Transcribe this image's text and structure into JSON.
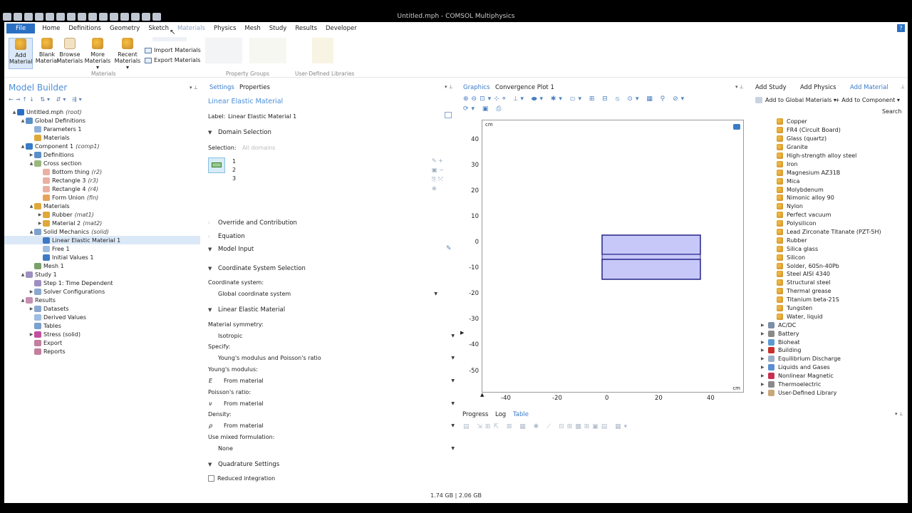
{
  "window": {
    "title": "Untitled.mph - COMSOL Multiphysics"
  },
  "menu": {
    "file": "File",
    "items": [
      "Home",
      "Definitions",
      "Geometry",
      "Sketch",
      "Materials",
      "Physics",
      "Mesh",
      "Study",
      "Results",
      "Developer"
    ]
  },
  "ribbon": {
    "add_material": [
      "Add",
      "Material"
    ],
    "blank_material": [
      "Blank",
      "Material"
    ],
    "browse_materials": [
      "Browse",
      "Materials"
    ],
    "more_materials": [
      "More",
      "Materials ▾"
    ],
    "recent_materials": [
      "Recent",
      "Materials ▾"
    ],
    "import_materials": "Import Materials",
    "export_materials": "Export Materials",
    "group_materials": "Materials",
    "group_property": "Property Groups",
    "group_udl": "User-Defined Libraries"
  },
  "model_builder": {
    "title": "Model Builder",
    "tree": [
      {
        "label": "Untitled.mph",
        "tag": "(root)",
        "indent": 0,
        "toggle": "▲",
        "color": "#2b6fc3"
      },
      {
        "label": "Global Definitions",
        "tag": "",
        "indent": 1,
        "toggle": "▲",
        "color": "#5b8fc8"
      },
      {
        "label": "Parameters 1",
        "tag": "",
        "indent": 2,
        "toggle": "",
        "color": "#8fb1d9"
      },
      {
        "label": "Materials",
        "tag": "",
        "indent": 2,
        "toggle": "",
        "color": "#e0a83a"
      },
      {
        "label": "Component 1",
        "tag": "(comp1)",
        "indent": 1,
        "toggle": "▲",
        "color": "#3a7bc8"
      },
      {
        "label": "Definitions",
        "tag": "",
        "indent": 2,
        "toggle": "▶",
        "color": "#5b8fc8"
      },
      {
        "label": "Cross section",
        "tag": "",
        "indent": 2,
        "toggle": "▲",
        "color": "#9ab77e"
      },
      {
        "label": "Bottom thing",
        "tag": "(r2)",
        "indent": 3,
        "toggle": "",
        "color": "#e9b1a1"
      },
      {
        "label": "Rectangle 3",
        "tag": "(r3)",
        "indent": 3,
        "toggle": "",
        "color": "#e9b1a1"
      },
      {
        "label": "Rectangle 4",
        "tag": "(r4)",
        "indent": 3,
        "toggle": "",
        "color": "#e9b1a1"
      },
      {
        "label": "Form Union",
        "tag": "(fin)",
        "indent": 3,
        "toggle": "",
        "color": "#e8a25a"
      },
      {
        "label": "Materials",
        "tag": "",
        "indent": 2,
        "toggle": "▲",
        "color": "#e0a83a"
      },
      {
        "label": "Rubber",
        "tag": "(mat1)",
        "indent": 3,
        "toggle": "▶",
        "color": "#e0a83a"
      },
      {
        "label": "Material 2",
        "tag": "(mat2)",
        "indent": 3,
        "toggle": "▶",
        "color": "#e0a83a"
      },
      {
        "label": "Solid Mechanics",
        "tag": "(solid)",
        "indent": 2,
        "toggle": "▲",
        "color": "#7ea1cc"
      },
      {
        "label": "Linear Elastic Material 1",
        "tag": "",
        "indent": 3,
        "toggle": "",
        "color": "#3d79c5",
        "selected": true
      },
      {
        "label": "Free 1",
        "tag": "",
        "indent": 3,
        "toggle": "",
        "color": "#9fbde0"
      },
      {
        "label": "Initial Values 1",
        "tag": "",
        "indent": 3,
        "toggle": "",
        "color": "#3d79c5"
      },
      {
        "label": "Mesh 1",
        "tag": "",
        "indent": 2,
        "toggle": "",
        "color": "#7ca06a"
      },
      {
        "label": "Study 1",
        "tag": "",
        "indent": 1,
        "toggle": "▲",
        "color": "#9e8fc2"
      },
      {
        "label": "Step 1: Time Dependent",
        "tag": "",
        "indent": 2,
        "toggle": "",
        "color": "#9e8fc2"
      },
      {
        "label": "Solver Configurations",
        "tag": "",
        "indent": 2,
        "toggle": "▶",
        "color": "#8aa7cf"
      },
      {
        "label": "Results",
        "tag": "",
        "indent": 1,
        "toggle": "▲",
        "color": "#c58fb1"
      },
      {
        "label": "Datasets",
        "tag": "",
        "indent": 2,
        "toggle": "▶",
        "color": "#8aa7cf"
      },
      {
        "label": "Derived Values",
        "tag": "",
        "indent": 2,
        "toggle": "",
        "color": "#9fbde0"
      },
      {
        "label": "Tables",
        "tag": "",
        "indent": 2,
        "toggle": "",
        "color": "#7aa0cf"
      },
      {
        "label": "Stress (solid)",
        "tag": "",
        "indent": 2,
        "toggle": "▶",
        "color": "#c24fa0"
      },
      {
        "label": "Export",
        "tag": "",
        "indent": 2,
        "toggle": "",
        "color": "#c27f9f"
      },
      {
        "label": "Reports",
        "tag": "",
        "indent": 2,
        "toggle": "",
        "color": "#c27f9f"
      }
    ]
  },
  "settings": {
    "tab_settings": "Settings",
    "tab_properties": "Properties",
    "title": "Linear Elastic Material",
    "label_caption": "Label:",
    "label_value": "Linear Elastic Material 1",
    "domain_selection": "Domain Selection",
    "selection_caption": "Selection:",
    "selection_value": "All domains",
    "domains": [
      "1",
      "2",
      "3"
    ],
    "override": "Override and Contribution",
    "equation": "Equation",
    "model_input": "Model Input",
    "coord_section": "Coordinate System Selection",
    "coord_caption": "Coordinate system:",
    "coord_value": "Global coordinate system",
    "lem_section": "Linear Elastic Material",
    "symmetry_caption": "Material symmetry:",
    "symmetry_value": "Isotropic",
    "specify_caption": "Specify:",
    "specify_value": "Young's modulus and Poisson's ratio",
    "young_caption": "Young's modulus:",
    "young_symbol": "E",
    "young_value": "From material",
    "poisson_caption": "Poisson's ratio:",
    "poisson_symbol": "ν",
    "poisson_value": "From material",
    "density_caption": "Density:",
    "density_symbol": "ρ",
    "density_value": "From material",
    "mixed_caption": "Use mixed formulation:",
    "mixed_value": "None",
    "quad_section": "Quadrature Settings",
    "reduced": "Reduced integration"
  },
  "graphics": {
    "tab_graphics": "Graphics",
    "tab_convergence": "Convergence Plot 1",
    "unit_top": "cm",
    "unit_bottom": "cm",
    "yticks": [
      "40",
      "30",
      "20",
      "10",
      "0",
      "-10",
      "-20",
      "-30",
      "-40",
      "-50"
    ],
    "xticks": [
      "-40",
      "-20",
      "0",
      "20",
      "40"
    ]
  },
  "bottom_tabs": {
    "progress": "Progress",
    "log": "Log",
    "table": "Table"
  },
  "add_panel": {
    "add_study": "Add Study",
    "add_physics": "Add Physics",
    "add_material": "Add Material",
    "add_global": "Add to Global Materials ▾",
    "add_component": "+ Add to Component ▾",
    "search": "Search",
    "materials": [
      "Copper",
      "FR4 (Circuit Board)",
      "Glass (quartz)",
      "Granite",
      "High-strength alloy steel",
      "Iron",
      "Magnesium AZ31B",
      "Mica",
      "Molybdenum",
      "Nimonic alloy 90",
      "Nylon",
      "Perfect vacuum",
      "Polysilicon",
      "Lead Zirconate Titanate (PZT-5H)",
      "Rubber",
      "Silica glass",
      "Silicon",
      "Solder, 60Sn-40Pb",
      "Steel AISI 4340",
      "Structural steel",
      "Thermal grease",
      "Titanium beta-21S",
      "Tungsten",
      "Water, liquid"
    ],
    "folders": [
      {
        "label": "AC/DC",
        "color": "#7a8fa8"
      },
      {
        "label": "Battery",
        "color": "#8a8a8a"
      },
      {
        "label": "Bioheat",
        "color": "#5a9ad0"
      },
      {
        "label": "Building",
        "color": "#c8302a"
      },
      {
        "label": "Equilibrium Discharge",
        "color": "#9ab0c8"
      },
      {
        "label": "Liquids and Gases",
        "color": "#5a8fd0"
      },
      {
        "label": "Nonlinear Magnetic",
        "color": "#c83050"
      },
      {
        "label": "Thermoelectric",
        "color": "#8a8a8a"
      },
      {
        "label": "User-Defined Library",
        "color": "#c8a878"
      }
    ]
  },
  "status": {
    "memory": "1.74 GB | 2.06 GB"
  }
}
